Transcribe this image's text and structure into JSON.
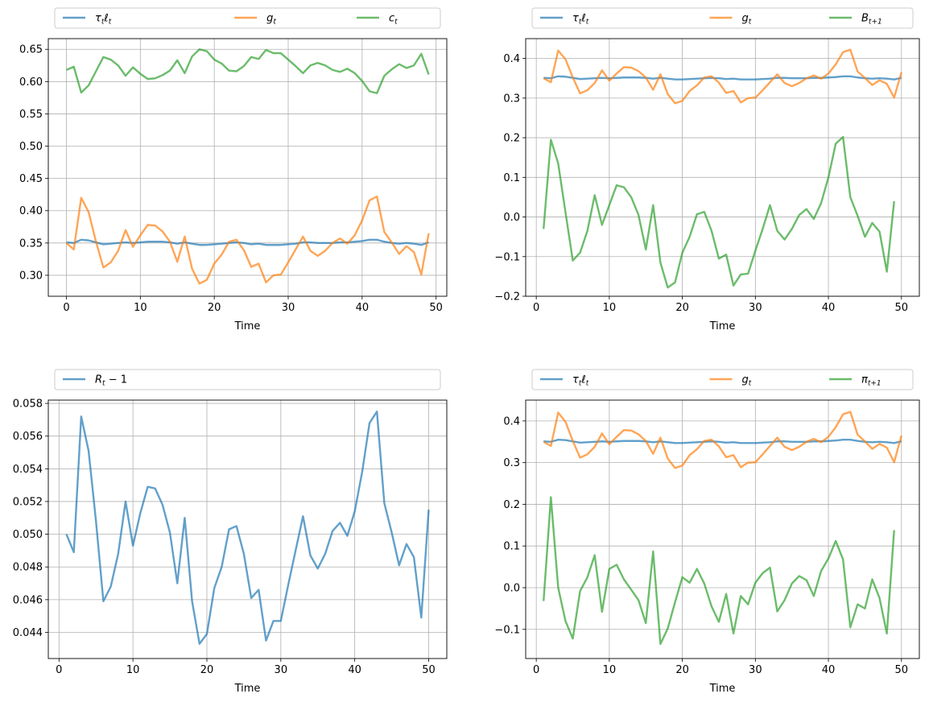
{
  "chart_data": [
    {
      "type": "line",
      "xlabel": "Time",
      "xlim": [
        -2.45,
        51.45
      ],
      "ylim": [
        0.2675,
        0.6665
      ],
      "xticks": [
        0,
        10,
        20,
        30,
        40,
        50
      ],
      "yticks": [
        0.3,
        0.35,
        0.4,
        0.45,
        0.5,
        0.55,
        0.6,
        0.65
      ],
      "ytick_decimals": 2,
      "grid": true,
      "legend_placement": "top, above plot, expanded across width",
      "series": [
        {
          "name": "τtℓt",
          "legend_label": [
            {
              "t": "τ",
              "s": "t"
            },
            {
              "t": "ℓ",
              "s": "t"
            }
          ],
          "color": "#1f77b4",
          "x_start": 0,
          "values": [
            0.351,
            0.35,
            0.355,
            0.354,
            0.351,
            0.348,
            0.349,
            0.35,
            0.351,
            0.35,
            0.351,
            0.352,
            0.352,
            0.352,
            0.351,
            0.349,
            0.351,
            0.349,
            0.347,
            0.347,
            0.348,
            0.349,
            0.35,
            0.351,
            0.35,
            0.348,
            0.349,
            0.347,
            0.347,
            0.347,
            0.348,
            0.349,
            0.351,
            0.351,
            0.35,
            0.35,
            0.35,
            0.351,
            0.351,
            0.352,
            0.353,
            0.355,
            0.355,
            0.352,
            0.35,
            0.349,
            0.35,
            0.349,
            0.347,
            0.351
          ]
        },
        {
          "name": "gt",
          "legend_label": [
            {
              "t": "g",
              "s": "t"
            }
          ],
          "color": "#ff7f0e",
          "x_start": 0,
          "values": [
            0.35,
            0.34,
            0.42,
            0.398,
            0.352,
            0.312,
            0.32,
            0.338,
            0.37,
            0.344,
            0.362,
            0.378,
            0.377,
            0.368,
            0.352,
            0.321,
            0.36,
            0.31,
            0.287,
            0.293,
            0.318,
            0.332,
            0.352,
            0.355,
            0.339,
            0.313,
            0.318,
            0.289,
            0.3,
            0.301,
            0.32,
            0.34,
            0.36,
            0.338,
            0.33,
            0.338,
            0.35,
            0.357,
            0.349,
            0.362,
            0.385,
            0.416,
            0.422,
            0.367,
            0.351,
            0.333,
            0.345,
            0.336,
            0.301,
            0.365
          ]
        },
        {
          "name": "ct",
          "legend_label": [
            {
              "t": "c",
              "s": "t"
            }
          ],
          "color": "#2ca02c",
          "x_start": 0,
          "values": [
            0.618,
            0.623,
            0.583,
            0.594,
            0.616,
            0.638,
            0.634,
            0.625,
            0.609,
            0.622,
            0.612,
            0.604,
            0.605,
            0.61,
            0.617,
            0.633,
            0.613,
            0.639,
            0.65,
            0.647,
            0.634,
            0.628,
            0.617,
            0.616,
            0.624,
            0.638,
            0.635,
            0.649,
            0.644,
            0.644,
            0.634,
            0.624,
            0.613,
            0.625,
            0.629,
            0.625,
            0.618,
            0.615,
            0.62,
            0.613,
            0.601,
            0.585,
            0.582,
            0.609,
            0.619,
            0.627,
            0.621,
            0.625,
            0.643,
            0.611
          ]
        }
      ]
    },
    {
      "type": "line",
      "xlabel": "Time",
      "xlim": [
        -1.45,
        52.45
      ],
      "ylim": [
        -0.2,
        0.45
      ],
      "xticks": [
        0,
        10,
        20,
        30,
        40,
        50
      ],
      "yticks": [
        -0.2,
        -0.1,
        0.0,
        0.1,
        0.2,
        0.3,
        0.4
      ],
      "ytick_decimals": 1,
      "grid": true,
      "legend_placement": "top, above plot, expanded across width",
      "series": [
        {
          "name": "τtℓt",
          "legend_label": [
            {
              "t": "τ",
              "s": "t"
            },
            {
              "t": "ℓ",
              "s": "t"
            }
          ],
          "color": "#1f77b4",
          "x_start": 1,
          "values": [
            0.351,
            0.35,
            0.355,
            0.354,
            0.351,
            0.348,
            0.349,
            0.35,
            0.351,
            0.35,
            0.351,
            0.352,
            0.352,
            0.352,
            0.351,
            0.349,
            0.351,
            0.349,
            0.347,
            0.347,
            0.348,
            0.349,
            0.35,
            0.351,
            0.35,
            0.348,
            0.349,
            0.347,
            0.347,
            0.347,
            0.348,
            0.349,
            0.351,
            0.351,
            0.35,
            0.35,
            0.35,
            0.351,
            0.351,
            0.352,
            0.353,
            0.355,
            0.355,
            0.352,
            0.35,
            0.349,
            0.35,
            0.349,
            0.347,
            0.351
          ]
        },
        {
          "name": "gt",
          "legend_label": [
            {
              "t": "g",
              "s": "t"
            }
          ],
          "color": "#ff7f0e",
          "x_start": 1,
          "values": [
            0.35,
            0.34,
            0.42,
            0.398,
            0.352,
            0.312,
            0.32,
            0.338,
            0.37,
            0.344,
            0.362,
            0.378,
            0.377,
            0.368,
            0.352,
            0.321,
            0.36,
            0.31,
            0.287,
            0.293,
            0.318,
            0.332,
            0.352,
            0.355,
            0.339,
            0.313,
            0.318,
            0.289,
            0.3,
            0.301,
            0.32,
            0.34,
            0.36,
            0.338,
            0.33,
            0.338,
            0.35,
            0.357,
            0.349,
            0.362,
            0.385,
            0.416,
            0.422,
            0.367,
            0.351,
            0.333,
            0.345,
            0.336,
            0.301,
            0.365
          ]
        },
        {
          "name": "Bt+1",
          "legend_label": [
            {
              "t": "B",
              "s": "t+1"
            }
          ],
          "color": "#2ca02c",
          "x_start": 1,
          "values": [
            -0.03,
            0.195,
            0.135,
            0.012,
            -0.11,
            -0.09,
            -0.035,
            0.055,
            -0.02,
            0.03,
            0.08,
            0.075,
            0.05,
            0.005,
            -0.082,
            0.03,
            -0.115,
            -0.178,
            -0.165,
            -0.09,
            -0.05,
            0.007,
            0.013,
            -0.035,
            -0.105,
            -0.095,
            -0.173,
            -0.145,
            -0.143,
            -0.085,
            -0.03,
            0.03,
            -0.035,
            -0.057,
            -0.03,
            0.005,
            0.02,
            -0.005,
            0.035,
            0.1,
            0.185,
            0.202,
            0.05,
            0.003,
            -0.05,
            -0.015,
            -0.037,
            -0.138,
            0.04
          ]
        }
      ]
    },
    {
      "type": "line",
      "xlabel": "Time",
      "xlim": [
        -1.45,
        52.45
      ],
      "ylim": [
        0.0424,
        0.0582
      ],
      "xticks": [
        0,
        10,
        20,
        30,
        40,
        50
      ],
      "yticks": [
        0.044,
        0.046,
        0.048,
        0.05,
        0.052,
        0.054,
        0.056,
        0.058
      ],
      "ytick_decimals": 3,
      "grid": true,
      "legend_placement": "top, above plot, expanded across width",
      "series": [
        {
          "name": "Rt − 1",
          "legend_label": [
            {
              "t": "R",
              "s": "t"
            },
            {
              "t": " − 1"
            }
          ],
          "color": "#1f77b4",
          "x_start": 1,
          "values": [
            0.05,
            0.0489,
            0.0572,
            0.0551,
            0.0508,
            0.0459,
            0.0468,
            0.0488,
            0.052,
            0.0493,
            0.0513,
            0.0529,
            0.0528,
            0.0518,
            0.0501,
            0.047,
            0.051,
            0.0459,
            0.0433,
            0.0439,
            0.0467,
            0.048,
            0.0503,
            0.0505,
            0.0488,
            0.0461,
            0.0466,
            0.0435,
            0.0447,
            0.0447,
            0.0469,
            0.049,
            0.0511,
            0.0487,
            0.0479,
            0.0488,
            0.0502,
            0.0507,
            0.0499,
            0.0514,
            0.0538,
            0.0568,
            0.0575,
            0.0519,
            0.0501,
            0.0481,
            0.0494,
            0.0486,
            0.0449,
            0.0515
          ]
        }
      ]
    },
    {
      "type": "line",
      "xlabel": "Time",
      "xlim": [
        -1.45,
        52.45
      ],
      "ylim": [
        -0.17,
        0.45
      ],
      "xticks": [
        0,
        10,
        20,
        30,
        40,
        50
      ],
      "yticks": [
        -0.1,
        0.0,
        0.1,
        0.2,
        0.3,
        0.4
      ],
      "ytick_decimals": 1,
      "grid": true,
      "legend_placement": "top, above plot, expanded across width",
      "series": [
        {
          "name": "τtℓt",
          "legend_label": [
            {
              "t": "τ",
              "s": "t"
            },
            {
              "t": "ℓ",
              "s": "t"
            }
          ],
          "color": "#1f77b4",
          "x_start": 1,
          "values": [
            0.351,
            0.35,
            0.355,
            0.354,
            0.351,
            0.348,
            0.349,
            0.35,
            0.351,
            0.35,
            0.351,
            0.352,
            0.352,
            0.352,
            0.351,
            0.349,
            0.351,
            0.349,
            0.347,
            0.347,
            0.348,
            0.349,
            0.35,
            0.351,
            0.35,
            0.348,
            0.349,
            0.347,
            0.347,
            0.347,
            0.348,
            0.349,
            0.351,
            0.351,
            0.35,
            0.35,
            0.35,
            0.351,
            0.351,
            0.352,
            0.353,
            0.355,
            0.355,
            0.352,
            0.35,
            0.349,
            0.35,
            0.349,
            0.347,
            0.351
          ]
        },
        {
          "name": "gt",
          "legend_label": [
            {
              "t": "g",
              "s": "t"
            }
          ],
          "color": "#ff7f0e",
          "x_start": 1,
          "values": [
            0.35,
            0.34,
            0.42,
            0.398,
            0.352,
            0.312,
            0.32,
            0.338,
            0.37,
            0.344,
            0.362,
            0.378,
            0.377,
            0.368,
            0.352,
            0.321,
            0.36,
            0.31,
            0.287,
            0.293,
            0.318,
            0.332,
            0.352,
            0.355,
            0.339,
            0.313,
            0.318,
            0.289,
            0.3,
            0.301,
            0.32,
            0.34,
            0.36,
            0.338,
            0.33,
            0.338,
            0.35,
            0.357,
            0.349,
            0.362,
            0.385,
            0.416,
            0.422,
            0.367,
            0.351,
            0.333,
            0.345,
            0.336,
            0.301,
            0.365
          ]
        },
        {
          "name": "πt+1",
          "legend_label": [
            {
              "t": "π",
              "s": "t+1"
            }
          ],
          "color": "#2ca02c",
          "x_start": 1,
          "values": [
            -0.032,
            0.217,
            0.0,
            -0.08,
            -0.122,
            -0.008,
            0.025,
            0.078,
            -0.058,
            0.045,
            0.055,
            0.02,
            -0.005,
            -0.03,
            -0.085,
            0.087,
            -0.135,
            -0.098,
            -0.035,
            0.025,
            0.012,
            0.045,
            0.01,
            -0.045,
            -0.082,
            -0.015,
            -0.11,
            -0.02,
            -0.04,
            0.012,
            0.035,
            0.048,
            -0.057,
            -0.03,
            0.01,
            0.028,
            0.018,
            -0.02,
            0.04,
            0.07,
            0.112,
            0.068,
            -0.095,
            -0.04,
            -0.05,
            0.02,
            -0.025,
            -0.11,
            0.138
          ]
        }
      ]
    }
  ]
}
